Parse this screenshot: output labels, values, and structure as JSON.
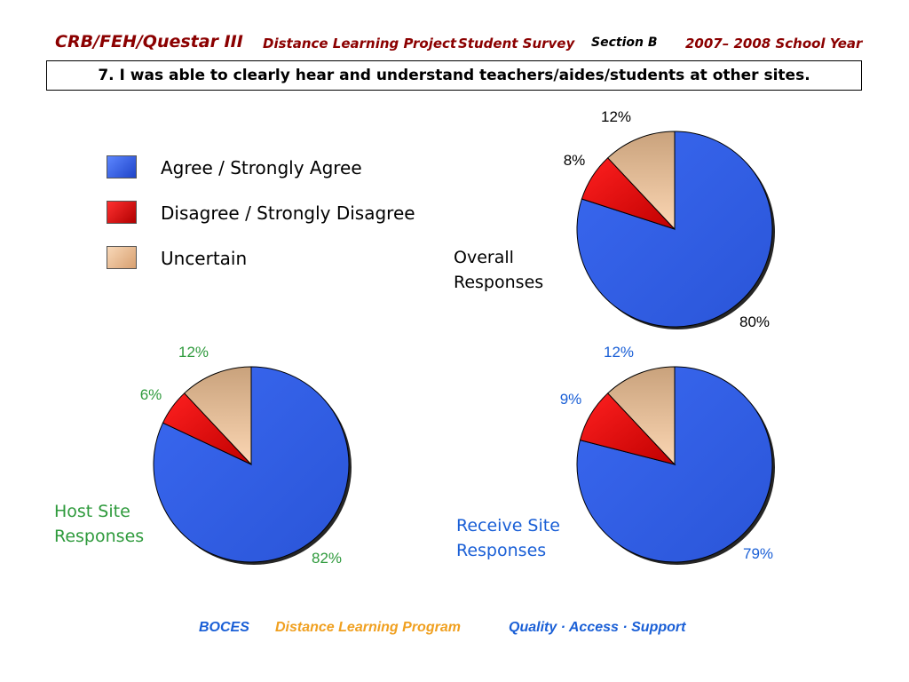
{
  "header": {
    "org": "CRB/FEH/Questar III",
    "project": "Distance Learning Project",
    "survey": "Student Survey",
    "section": "Section B",
    "year": "2007– 2008 School Year"
  },
  "question": "7. I was able to clearly hear and understand teachers/aides/students at other sites.",
  "legend": [
    {
      "label": "Agree / Strongly Agree",
      "color": "#2f5fe0"
    },
    {
      "label": "Disagree / Strongly Disagree",
      "color": "#e00000"
    },
    {
      "label": "Uncertain",
      "color": "#f2c29a"
    }
  ],
  "chart_data": [
    {
      "type": "pie",
      "title": "Overall Responses",
      "title_lines": [
        "Overall",
        "Responses"
      ],
      "categories": [
        "Agree / Strongly Agree",
        "Disagree / Strongly Disagree",
        "Uncertain"
      ],
      "values": [
        80,
        8,
        12
      ],
      "data_labels": [
        "80%",
        "8%",
        "12%"
      ],
      "label_color": "#000000"
    },
    {
      "type": "pie",
      "title": "Host Site Responses",
      "title_lines": [
        "Host Site",
        "Responses"
      ],
      "categories": [
        "Agree / Strongly Agree",
        "Disagree / Strongly Disagree",
        "Uncertain"
      ],
      "values": [
        82,
        6,
        12
      ],
      "data_labels": [
        "82%",
        "6%",
        "12%"
      ],
      "label_color": "#2e9a3c"
    },
    {
      "type": "pie",
      "title": "Receive Site Responses",
      "title_lines": [
        "Receive Site",
        "Responses"
      ],
      "categories": [
        "Agree / Strongly Agree",
        "Disagree / Strongly Disagree",
        "Uncertain"
      ],
      "values": [
        79,
        9,
        12
      ],
      "data_labels": [
        "79%",
        "9%",
        "12%"
      ],
      "label_color": "#1a5fd6"
    }
  ],
  "footer": {
    "org": "BOCES",
    "program": "Distance Learning Program",
    "tagline": "Quality · Access · Support"
  }
}
